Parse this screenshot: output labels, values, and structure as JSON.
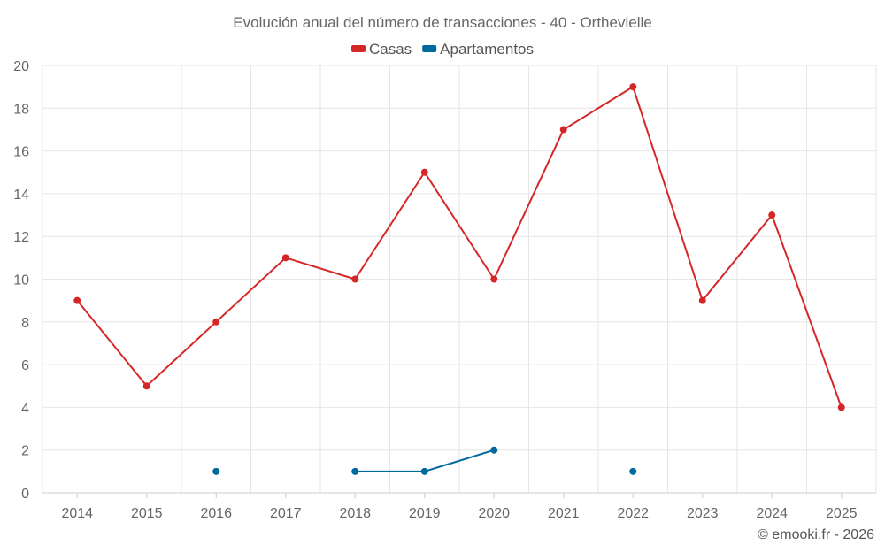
{
  "chart_data": {
    "type": "line",
    "title": "Evolución anual del número de transacciones - 40 - Orthevielle",
    "categories": [
      "2014",
      "2015",
      "2016",
      "2017",
      "2018",
      "2019",
      "2020",
      "2021",
      "2022",
      "2023",
      "2024",
      "2025"
    ],
    "ylim": [
      0,
      20
    ],
    "yticks": [
      0,
      2,
      4,
      6,
      8,
      10,
      12,
      14,
      16,
      18,
      20
    ],
    "grid": true,
    "legend_position": "top-center",
    "series": [
      {
        "name": "Casas",
        "color": "#d62728",
        "values": [
          9,
          5,
          8,
          11,
          10,
          15,
          10,
          17,
          19,
          9,
          13,
          4
        ]
      },
      {
        "name": "Apartamentos",
        "color": "#00699d",
        "values": [
          null,
          null,
          1,
          null,
          1,
          1,
          2,
          null,
          1,
          null,
          null,
          null
        ]
      }
    ]
  },
  "credit": "© emooki.fr - 2026"
}
